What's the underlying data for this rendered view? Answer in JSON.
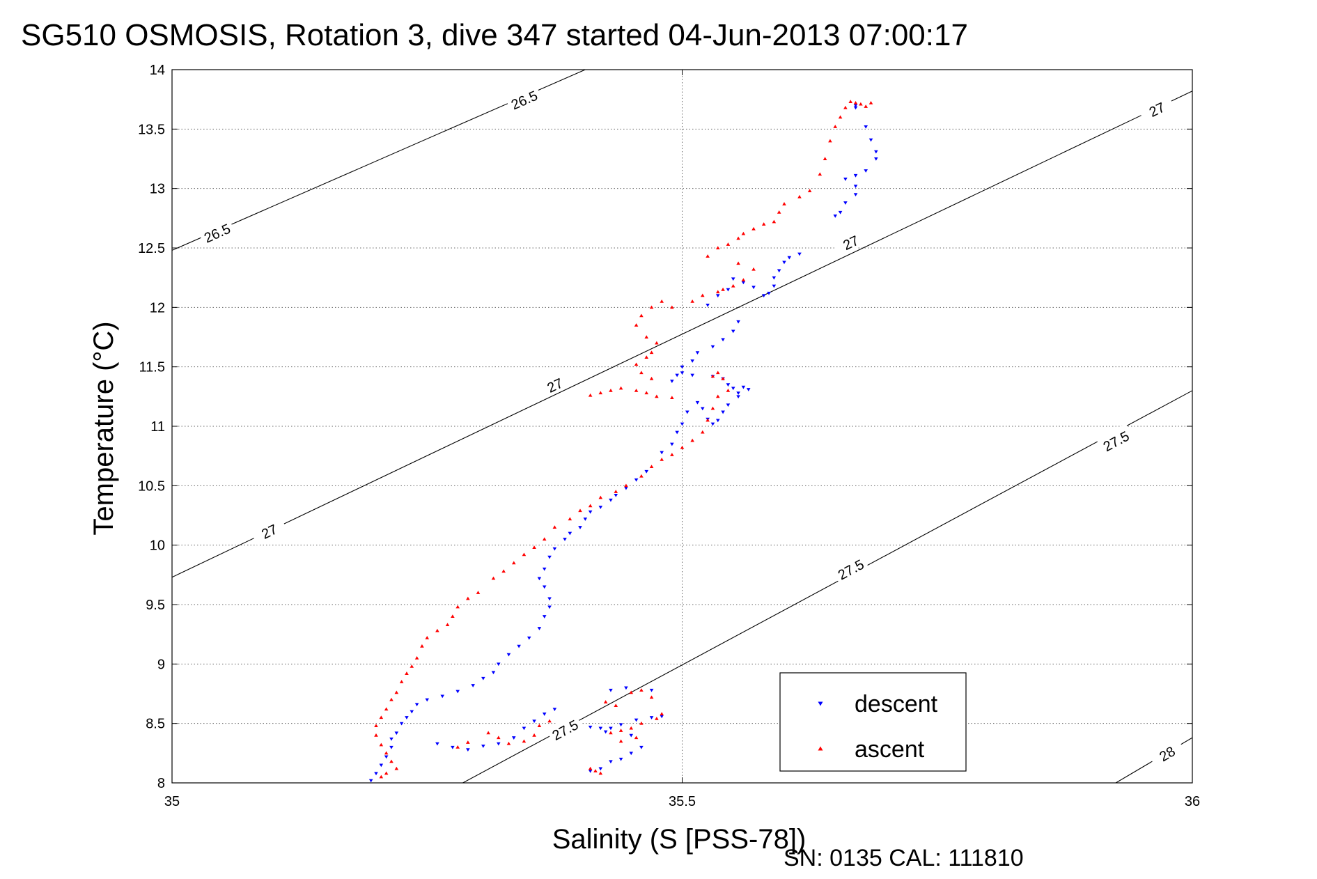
{
  "chart_data": {
    "type": "scatter",
    "title": "SG510 OSMOSIS, Rotation 3, dive 347 started 04-Jun-2013 07:00:17",
    "xlabel": "Salinity (S [PSS-78])",
    "ylabel": "Temperature (°C)",
    "footer": "SN: 0135  CAL: 111810",
    "xlim": [
      35,
      36
    ],
    "ylim": [
      8,
      14
    ],
    "x_ticks": [
      "35",
      "35.5",
      "36"
    ],
    "y_ticks": [
      "8",
      "8.5",
      "9",
      "9.5",
      "10",
      "10.5",
      "11",
      "11.5",
      "12",
      "12.5",
      "13",
      "13.5",
      "14"
    ],
    "grid": "dotted",
    "legend_position": "bottom-right",
    "density_contours": [
      {
        "level": "26.5",
        "line": [
          [
            35.0,
            12.48
          ],
          [
            35.405,
            14.0
          ]
        ],
        "labels": [
          [
            35.044,
            12.63
          ],
          [
            35.345,
            13.75
          ]
        ]
      },
      {
        "level": "27",
        "line": [
          [
            35.0,
            9.73
          ],
          [
            36.0,
            13.82
          ]
        ],
        "labels": [
          [
            35.095,
            10.12
          ],
          [
            35.375,
            11.35
          ],
          [
            35.665,
            12.55
          ],
          [
            35.965,
            13.67
          ]
        ]
      },
      {
        "level": "27.5",
        "line": [
          [
            35.285,
            8.0
          ],
          [
            36.0,
            11.3
          ]
        ],
        "labels": [
          [
            35.385,
            8.45
          ],
          [
            35.665,
            9.8
          ],
          [
            35.925,
            10.88
          ]
        ]
      },
      {
        "level": "28",
        "line": [
          [
            35.925,
            8.0
          ],
          [
            36.0,
            8.38
          ]
        ],
        "labels": [
          [
            35.975,
            8.25
          ]
        ]
      }
    ],
    "series": [
      {
        "name": "descent",
        "color": "#0000ff",
        "marker": "triangle-down",
        "points": [
          [
            35.67,
            13.7
          ],
          [
            35.67,
            13.68
          ],
          [
            35.68,
            13.52
          ],
          [
            35.685,
            13.41
          ],
          [
            35.69,
            13.31
          ],
          [
            35.69,
            13.25
          ],
          [
            35.68,
            13.15
          ],
          [
            35.67,
            13.11
          ],
          [
            35.66,
            13.08
          ],
          [
            35.67,
            13.02
          ],
          [
            35.67,
            12.95
          ],
          [
            35.66,
            12.88
          ],
          [
            35.655,
            12.8
          ],
          [
            35.65,
            12.77
          ],
          [
            35.615,
            12.45
          ],
          [
            35.605,
            12.42
          ],
          [
            35.6,
            12.38
          ],
          [
            35.595,
            12.31
          ],
          [
            35.59,
            12.25
          ],
          [
            35.59,
            12.18
          ],
          [
            35.585,
            12.12
          ],
          [
            35.58,
            12.1
          ],
          [
            35.57,
            12.17
          ],
          [
            35.56,
            12.21
          ],
          [
            35.55,
            12.24
          ],
          [
            35.545,
            12.15
          ],
          [
            35.535,
            12.1
          ],
          [
            35.525,
            12.02
          ],
          [
            35.555,
            11.88
          ],
          [
            35.55,
            11.8
          ],
          [
            35.54,
            11.73
          ],
          [
            35.53,
            11.67
          ],
          [
            35.515,
            11.62
          ],
          [
            35.51,
            11.55
          ],
          [
            35.5,
            11.5
          ],
          [
            35.495,
            11.43
          ],
          [
            35.49,
            11.38
          ],
          [
            35.5,
            11.45
          ],
          [
            35.51,
            11.43
          ],
          [
            35.53,
            11.42
          ],
          [
            35.54,
            11.4
          ],
          [
            35.545,
            11.35
          ],
          [
            35.55,
            11.32
          ],
          [
            35.555,
            11.28
          ],
          [
            35.56,
            11.33
          ],
          [
            35.565,
            11.31
          ],
          [
            35.555,
            11.25
          ],
          [
            35.545,
            11.18
          ],
          [
            35.54,
            11.12
          ],
          [
            35.535,
            11.05
          ],
          [
            35.53,
            11.02
          ],
          [
            35.525,
            11.06
          ],
          [
            35.52,
            11.15
          ],
          [
            35.515,
            11.2
          ],
          [
            35.505,
            11.12
          ],
          [
            35.5,
            11.02
          ],
          [
            35.495,
            10.95
          ],
          [
            35.49,
            10.85
          ],
          [
            35.48,
            10.78
          ],
          [
            35.465,
            10.62
          ],
          [
            35.455,
            10.55
          ],
          [
            35.445,
            10.48
          ],
          [
            35.435,
            10.42
          ],
          [
            35.43,
            10.38
          ],
          [
            35.42,
            10.32
          ],
          [
            35.41,
            10.28
          ],
          [
            35.405,
            10.22
          ],
          [
            35.4,
            10.15
          ],
          [
            35.39,
            10.1
          ],
          [
            35.385,
            10.05
          ],
          [
            35.375,
            9.97
          ],
          [
            35.37,
            9.9
          ],
          [
            35.365,
            9.8
          ],
          [
            35.36,
            9.72
          ],
          [
            35.365,
            9.65
          ],
          [
            35.37,
            9.55
          ],
          [
            35.37,
            9.48
          ],
          [
            35.365,
            9.4
          ],
          [
            35.36,
            9.3
          ],
          [
            35.35,
            9.22
          ],
          [
            35.34,
            9.15
          ],
          [
            35.33,
            9.08
          ],
          [
            35.32,
            9.0
          ],
          [
            35.315,
            8.93
          ],
          [
            35.305,
            8.88
          ],
          [
            35.295,
            8.82
          ],
          [
            35.28,
            8.77
          ],
          [
            35.265,
            8.73
          ],
          [
            35.25,
            8.7
          ],
          [
            35.24,
            8.66
          ],
          [
            35.235,
            8.6
          ],
          [
            35.23,
            8.55
          ],
          [
            35.225,
            8.5
          ],
          [
            35.22,
            8.42
          ],
          [
            35.215,
            8.37
          ],
          [
            35.215,
            8.3
          ],
          [
            35.21,
            8.22
          ],
          [
            35.205,
            8.15
          ],
          [
            35.2,
            8.08
          ],
          [
            35.195,
            8.02
          ],
          [
            35.26,
            8.33
          ],
          [
            35.275,
            8.3
          ],
          [
            35.29,
            8.28
          ],
          [
            35.305,
            8.31
          ],
          [
            35.32,
            8.33
          ],
          [
            35.335,
            8.38
          ],
          [
            35.345,
            8.46
          ],
          [
            35.355,
            8.52
          ],
          [
            35.365,
            8.58
          ],
          [
            35.375,
            8.62
          ],
          [
            35.48,
            8.56
          ],
          [
            35.47,
            8.55
          ],
          [
            35.455,
            8.53
          ],
          [
            35.44,
            8.49
          ],
          [
            35.43,
            8.46
          ],
          [
            35.42,
            8.46
          ],
          [
            35.41,
            8.47
          ],
          [
            35.425,
            8.43
          ],
          [
            35.45,
            8.4
          ],
          [
            35.46,
            8.3
          ],
          [
            35.45,
            8.25
          ],
          [
            35.44,
            8.2
          ],
          [
            35.43,
            8.18
          ],
          [
            35.42,
            8.12
          ],
          [
            35.41,
            8.1
          ],
          [
            35.43,
            8.78
          ],
          [
            35.445,
            8.8
          ],
          [
            35.47,
            8.78
          ]
        ]
      },
      {
        "name": "ascent",
        "color": "#ff0000",
        "marker": "triangle-up",
        "points": [
          [
            35.665,
            13.73
          ],
          [
            35.67,
            13.72
          ],
          [
            35.675,
            13.71
          ],
          [
            35.68,
            13.69
          ],
          [
            35.685,
            13.72
          ],
          [
            35.66,
            13.68
          ],
          [
            35.655,
            13.6
          ],
          [
            35.65,
            13.52
          ],
          [
            35.645,
            13.4
          ],
          [
            35.64,
            13.25
          ],
          [
            35.635,
            13.12
          ],
          [
            35.625,
            12.98
          ],
          [
            35.615,
            12.93
          ],
          [
            35.6,
            12.87
          ],
          [
            35.595,
            12.8
          ],
          [
            35.59,
            12.72
          ],
          [
            35.58,
            12.7
          ],
          [
            35.57,
            12.66
          ],
          [
            35.56,
            12.62
          ],
          [
            35.555,
            12.58
          ],
          [
            35.545,
            12.53
          ],
          [
            35.535,
            12.5
          ],
          [
            35.525,
            12.43
          ],
          [
            35.555,
            12.37
          ],
          [
            35.57,
            12.32
          ],
          [
            35.56,
            12.23
          ],
          [
            35.55,
            12.18
          ],
          [
            35.54,
            12.15
          ],
          [
            35.535,
            12.13
          ],
          [
            35.52,
            12.1
          ],
          [
            35.51,
            12.05
          ],
          [
            35.49,
            12.0
          ],
          [
            35.48,
            12.05
          ],
          [
            35.47,
            12.0
          ],
          [
            35.46,
            11.93
          ],
          [
            35.455,
            11.85
          ],
          [
            35.465,
            11.75
          ],
          [
            35.475,
            11.7
          ],
          [
            35.47,
            11.62
          ],
          [
            35.465,
            11.58
          ],
          [
            35.455,
            11.52
          ],
          [
            35.46,
            11.45
          ],
          [
            35.47,
            11.4
          ],
          [
            35.455,
            11.3
          ],
          [
            35.465,
            11.28
          ],
          [
            35.475,
            11.25
          ],
          [
            35.49,
            11.24
          ],
          [
            35.43,
            11.3
          ],
          [
            35.42,
            11.28
          ],
          [
            35.41,
            11.26
          ],
          [
            35.44,
            11.32
          ],
          [
            35.53,
            11.42
          ],
          [
            35.535,
            11.45
          ],
          [
            35.54,
            11.4
          ],
          [
            35.545,
            11.3
          ],
          [
            35.535,
            11.25
          ],
          [
            35.53,
            11.15
          ],
          [
            35.525,
            11.05
          ],
          [
            35.52,
            10.95
          ],
          [
            35.51,
            10.88
          ],
          [
            35.5,
            10.82
          ],
          [
            35.49,
            10.76
          ],
          [
            35.48,
            10.72
          ],
          [
            35.47,
            10.66
          ],
          [
            35.46,
            10.58
          ],
          [
            35.445,
            10.5
          ],
          [
            35.435,
            10.45
          ],
          [
            35.42,
            10.4
          ],
          [
            35.41,
            10.33
          ],
          [
            35.4,
            10.29
          ],
          [
            35.39,
            10.22
          ],
          [
            35.375,
            10.15
          ],
          [
            35.365,
            10.05
          ],
          [
            35.355,
            9.98
          ],
          [
            35.345,
            9.92
          ],
          [
            35.335,
            9.85
          ],
          [
            35.325,
            9.78
          ],
          [
            35.315,
            9.72
          ],
          [
            35.3,
            9.6
          ],
          [
            35.29,
            9.55
          ],
          [
            35.28,
            9.48
          ],
          [
            35.275,
            9.4
          ],
          [
            35.27,
            9.33
          ],
          [
            35.26,
            9.28
          ],
          [
            35.25,
            9.22
          ],
          [
            35.245,
            9.15
          ],
          [
            35.24,
            9.05
          ],
          [
            35.235,
            8.98
          ],
          [
            35.23,
            8.92
          ],
          [
            35.225,
            8.85
          ],
          [
            35.22,
            8.76
          ],
          [
            35.215,
            8.7
          ],
          [
            35.21,
            8.62
          ],
          [
            35.205,
            8.55
          ],
          [
            35.2,
            8.48
          ],
          [
            35.2,
            8.4
          ],
          [
            35.205,
            8.32
          ],
          [
            35.21,
            8.25
          ],
          [
            35.215,
            8.18
          ],
          [
            35.22,
            8.12
          ],
          [
            35.21,
            8.08
          ],
          [
            35.205,
            8.05
          ],
          [
            35.28,
            8.3
          ],
          [
            35.29,
            8.34
          ],
          [
            35.31,
            8.42
          ],
          [
            35.32,
            8.38
          ],
          [
            35.33,
            8.33
          ],
          [
            35.345,
            8.35
          ],
          [
            35.355,
            8.4
          ],
          [
            35.36,
            8.48
          ],
          [
            35.37,
            8.52
          ],
          [
            35.41,
            8.12
          ],
          [
            35.415,
            8.1
          ],
          [
            35.42,
            8.08
          ],
          [
            35.43,
            8.42
          ],
          [
            35.44,
            8.44
          ],
          [
            35.45,
            8.46
          ],
          [
            35.46,
            8.5
          ],
          [
            35.475,
            8.54
          ],
          [
            35.48,
            8.58
          ],
          [
            35.435,
            8.65
          ],
          [
            35.425,
            8.68
          ],
          [
            35.45,
            8.76
          ],
          [
            35.46,
            8.78
          ],
          [
            35.47,
            8.72
          ],
          [
            35.44,
            8.35
          ],
          [
            35.455,
            8.38
          ]
        ]
      }
    ]
  }
}
